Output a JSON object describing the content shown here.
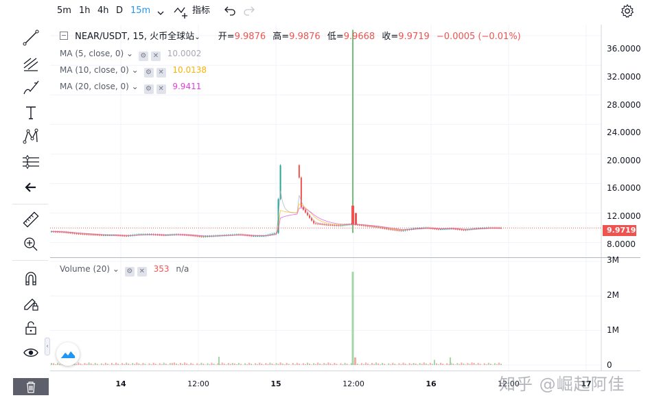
{
  "toolbar": {
    "intervals": [
      {
        "label": "5m",
        "active": false
      },
      {
        "label": "1h",
        "active": false
      },
      {
        "label": "4h",
        "active": false
      },
      {
        "label": "D",
        "active": false
      },
      {
        "label": "15m",
        "active": true
      }
    ],
    "indicators_label": "指标",
    "icons": [
      "crosshair-icon",
      "chevron-down-icon",
      "indicators-icon",
      "undo-icon",
      "redo-icon",
      "settings-icon"
    ]
  },
  "left_toolbar": {
    "tools": [
      "trend-line-icon",
      "fib-icon",
      "brush-icon",
      "text-icon",
      "pattern-icon",
      "projection-icon",
      "arrow-left-icon",
      "ruler-icon",
      "zoom-in-icon",
      "magnet-icon",
      "lock-drawing-icon",
      "unlock-icon",
      "eye-icon",
      "trash-icon"
    ]
  },
  "symbol": {
    "title": "NEAR/USDT, 15, 火币全球站",
    "open_label": "开=",
    "open": "9.9876",
    "high_label": "高=",
    "high": "9.9876",
    "low_label": "低=",
    "low": "9.9668",
    "close_label": "收=",
    "close": "9.9719",
    "change": "−0.0005 (−0.01%)"
  },
  "indicators": [
    {
      "name": "MA (5, close, 0)",
      "value": "10.0002",
      "color": "#a7aab3"
    },
    {
      "name": "MA (10, close, 0)",
      "value": "10.0138",
      "color": "#f5b400"
    },
    {
      "name": "MA (20, close, 0)",
      "value": "9.9411",
      "color": "#e040d8"
    }
  ],
  "volume": {
    "name": "Volume (20)",
    "value": "353",
    "extra": "n/a"
  },
  "price_axis": [
    "36.0000",
    "32.0000",
    "28.0000",
    "24.0000",
    "20.0000",
    "16.0000",
    "12.0000",
    "8.0000"
  ],
  "current_price": "9.9719",
  "volume_axis": [
    "3M",
    "2M",
    "1M",
    "0"
  ],
  "time_axis": [
    "14",
    "12:00",
    "15",
    "12:00",
    "16",
    "12:00",
    "17"
  ],
  "watermark": "知乎 @崛起阿佳",
  "colors": {
    "up": "#26a69a",
    "down": "#ef5350",
    "accent": "#2196f3",
    "spike": "#2e9e2e"
  },
  "chart_data": {
    "type": "candlestick",
    "symbol": "NEAR/USDT",
    "interval": "15",
    "price_ylim": [
      6,
      37.5
    ],
    "volume_ylim": [
      0,
      3000000
    ],
    "x_labels": [
      "14",
      "12:00",
      "15",
      "12:00",
      "16",
      "12:00",
      "17"
    ],
    "series": [
      {
        "name": "price",
        "approx_close": [
          9.5,
          9.4,
          9.2,
          9.1,
          9.0,
          9.0,
          8.9,
          9.1,
          9.1,
          9.0,
          9.1,
          9.0,
          8.8,
          8.9,
          9.0,
          9.1,
          8.9,
          8.9,
          9.3,
          36.8,
          12.8,
          10.6,
          10.4,
          10.3,
          10.5,
          10.3,
          10.1,
          9.8,
          9.6,
          9.9,
          10.0,
          9.8,
          9.9,
          9.7,
          9.9,
          10.0,
          9.97
        ]
      },
      {
        "name": "volume",
        "peak": 2700000
      }
    ]
  }
}
